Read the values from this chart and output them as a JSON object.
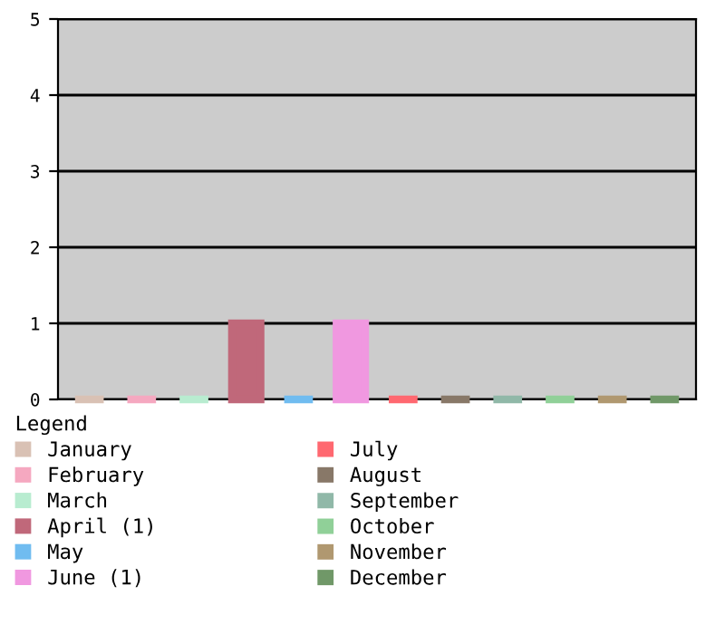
{
  "chart_data": {
    "type": "bar",
    "legend_title": "Legend",
    "categories": [
      null,
      null,
      null,
      null,
      null,
      null,
      null,
      null,
      null,
      null,
      null,
      null
    ],
    "series": [
      {
        "name": "January",
        "color": "#d9c1b4",
        "values": [
          0,
          null,
          null,
          null,
          null,
          null,
          null,
          null,
          null,
          null,
          null,
          null
        ]
      },
      {
        "name": "February",
        "color": "#f5a8c0",
        "values": [
          null,
          0,
          null,
          null,
          null,
          null,
          null,
          null,
          null,
          null,
          null,
          null
        ]
      },
      {
        "name": "March",
        "color": "#b8ecd0",
        "values": [
          null,
          null,
          0,
          null,
          null,
          null,
          null,
          null,
          null,
          null,
          null,
          null
        ]
      },
      {
        "name": "April (1)",
        "color": "#c0687a",
        "values": [
          null,
          null,
          null,
          1,
          null,
          null,
          null,
          null,
          null,
          null,
          null,
          null
        ]
      },
      {
        "name": "May",
        "color": "#70bcf0",
        "values": [
          null,
          null,
          null,
          null,
          0,
          null,
          null,
          null,
          null,
          null,
          null,
          null
        ]
      },
      {
        "name": "June (1)",
        "color": "#f098e0",
        "values": [
          null,
          null,
          null,
          null,
          null,
          1,
          null,
          null,
          null,
          null,
          null,
          null
        ]
      },
      {
        "name": "July",
        "color": "#ff6870",
        "values": [
          null,
          null,
          null,
          null,
          null,
          null,
          0,
          null,
          null,
          null,
          null,
          null
        ]
      },
      {
        "name": "August",
        "color": "#887868",
        "values": [
          null,
          null,
          null,
          null,
          null,
          null,
          null,
          0,
          null,
          null,
          null,
          null
        ]
      },
      {
        "name": "September",
        "color": "#90b8a8",
        "values": [
          null,
          null,
          null,
          null,
          null,
          null,
          null,
          null,
          0,
          null,
          null,
          null
        ]
      },
      {
        "name": "October",
        "color": "#90d098",
        "values": [
          null,
          null,
          null,
          null,
          null,
          null,
          null,
          null,
          null,
          0,
          null,
          null
        ]
      },
      {
        "name": "November",
        "color": "#b09870",
        "values": [
          null,
          null,
          null,
          null,
          null,
          null,
          null,
          null,
          null,
          null,
          0,
          null
        ]
      },
      {
        "name": "December",
        "color": "#709868",
        "values": [
          null,
          null,
          null,
          null,
          null,
          null,
          null,
          null,
          null,
          null,
          null,
          0
        ]
      }
    ],
    "ylim": [
      0,
      5
    ],
    "yticks": [
      0,
      1,
      2,
      3,
      4,
      5
    ],
    "grid": "y",
    "legend": "bottom",
    "tick_labels": "y"
  }
}
